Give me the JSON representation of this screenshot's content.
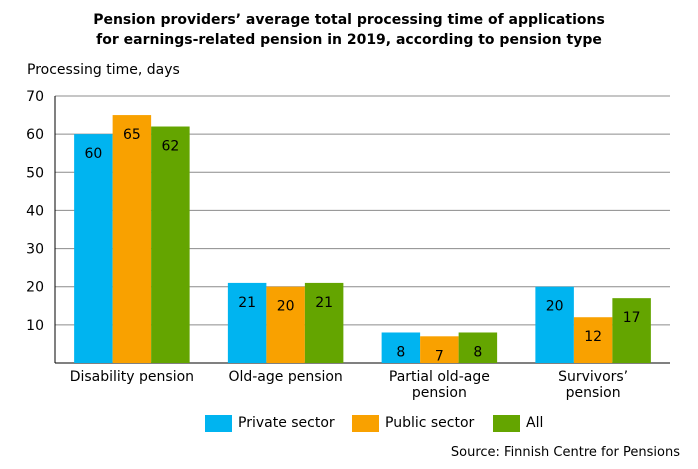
{
  "chart_data": {
    "type": "bar",
    "title_lines": [
      "Pension providers’ average total processing time of applications",
      "for earnings-related pension in 2019, according to pension type"
    ],
    "ylabel": "Processing time, days",
    "xlabel": "",
    "ylim": [
      0,
      70
    ],
    "yticks": [
      10,
      20,
      30,
      40,
      50,
      60,
      70
    ],
    "grid": true,
    "categories": [
      [
        "Disability pension"
      ],
      [
        "Old-age pension"
      ],
      [
        "Partial old-age",
        "pension"
      ],
      [
        "Survivors’",
        "pension"
      ]
    ],
    "series": [
      {
        "name": "Private sector",
        "color": "#00b4f0",
        "values": [
          60,
          21,
          8,
          20
        ]
      },
      {
        "name": "Public sector",
        "color": "#f9a100",
        "values": [
          65,
          20,
          7,
          12
        ]
      },
      {
        "name": "All",
        "color": "#64a500",
        "values": [
          62,
          21,
          8,
          17
        ]
      }
    ],
    "legend_position": "bottom",
    "source": "Source: Finnish Centre for Pensions"
  }
}
